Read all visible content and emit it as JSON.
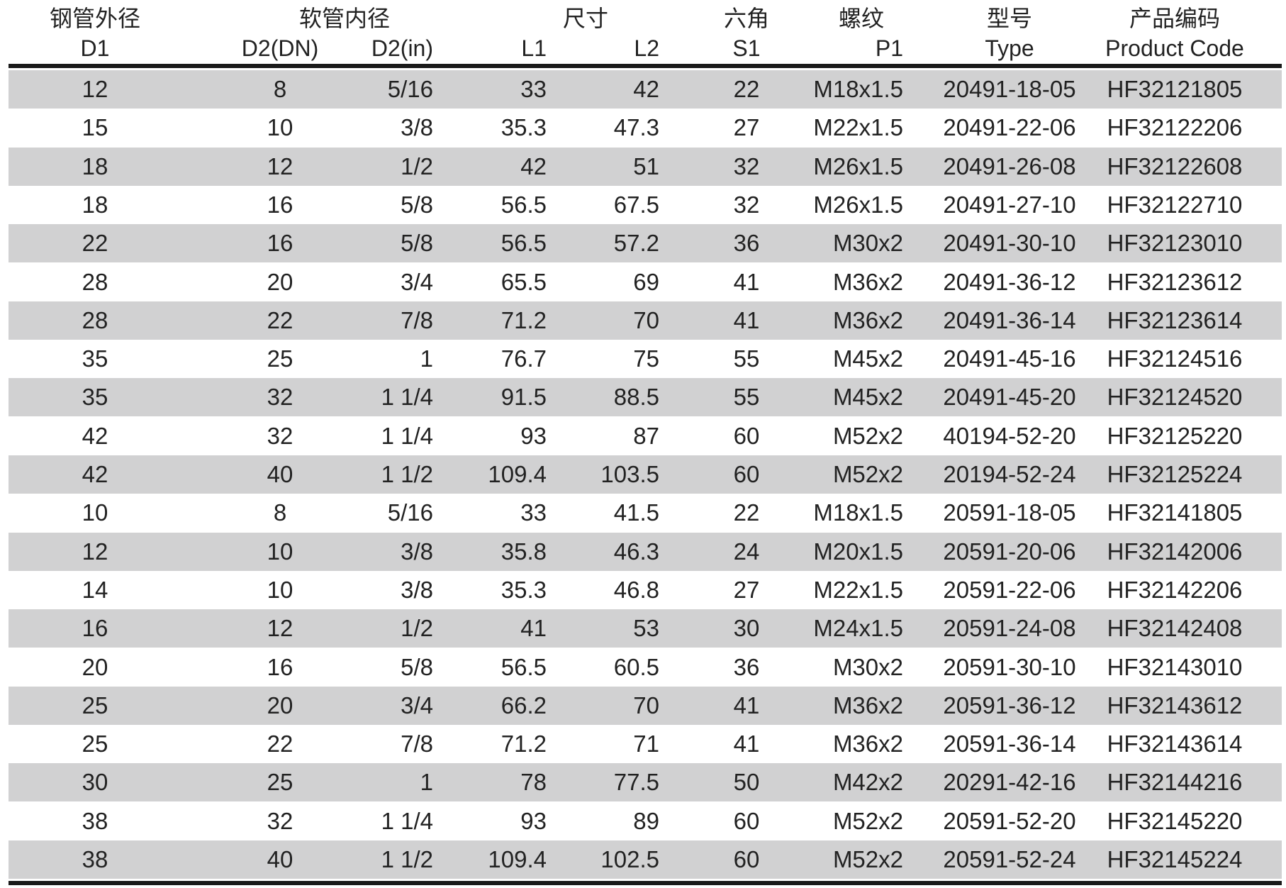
{
  "header": {
    "groups": [
      "钢管外径",
      "软管内径",
      "尺寸",
      "六角",
      "螺纹",
      "型号",
      "产品编码"
    ],
    "columns": [
      "D1",
      "D2(DN)",
      "D2(in)",
      "L1",
      "L2",
      "S1",
      "P1",
      "Type",
      "Product Code"
    ]
  },
  "table": {
    "rows": [
      [
        "12",
        "8",
        "5/16",
        "33",
        "42",
        "22",
        "M18x1.5",
        "20491-18-05",
        "HF32121805"
      ],
      [
        "15",
        "10",
        "3/8",
        "35.3",
        "47.3",
        "27",
        "M22x1.5",
        "20491-22-06",
        "HF32122206"
      ],
      [
        "18",
        "12",
        "1/2",
        "42",
        "51",
        "32",
        "M26x1.5",
        "20491-26-08",
        "HF32122608"
      ],
      [
        "18",
        "16",
        "5/8",
        "56.5",
        "67.5",
        "32",
        "M26x1.5",
        "20491-27-10",
        "HF32122710"
      ],
      [
        "22",
        "16",
        "5/8",
        "56.5",
        "57.2",
        "36",
        "M30x2",
        "20491-30-10",
        "HF32123010"
      ],
      [
        "28",
        "20",
        "3/4",
        "65.5",
        "69",
        "41",
        "M36x2",
        "20491-36-12",
        "HF32123612"
      ],
      [
        "28",
        "22",
        "7/8",
        "71.2",
        "70",
        "41",
        "M36x2",
        "20491-36-14",
        "HF32123614"
      ],
      [
        "35",
        "25",
        "1",
        "76.7",
        "75",
        "55",
        "M45x2",
        "20491-45-16",
        "HF32124516"
      ],
      [
        "35",
        "32",
        "1 1/4",
        "91.5",
        "88.5",
        "55",
        "M45x2",
        "20491-45-20",
        "HF32124520"
      ],
      [
        "42",
        "32",
        "1 1/4",
        "93",
        "87",
        "60",
        "M52x2",
        "40194-52-20",
        "HF32125220"
      ],
      [
        "42",
        "40",
        "1 1/2",
        "109.4",
        "103.5",
        "60",
        "M52x2",
        "20194-52-24",
        "HF32125224"
      ],
      [
        "10",
        "8",
        "5/16",
        "33",
        "41.5",
        "22",
        "M18x1.5",
        "20591-18-05",
        "HF32141805"
      ],
      [
        "12",
        "10",
        "3/8",
        "35.8",
        "46.3",
        "24",
        "M20x1.5",
        "20591-20-06",
        "HF32142006"
      ],
      [
        "14",
        "10",
        "3/8",
        "35.3",
        "46.8",
        "27",
        "M22x1.5",
        "20591-22-06",
        "HF32142206"
      ],
      [
        "16",
        "12",
        "1/2",
        "41",
        "53",
        "30",
        "M24x1.5",
        "20591-24-08",
        "HF32142408"
      ],
      [
        "20",
        "16",
        "5/8",
        "56.5",
        "60.5",
        "36",
        "M30x2",
        "20591-30-10",
        "HF32143010"
      ],
      [
        "25",
        "20",
        "3/4",
        "66.2",
        "70",
        "41",
        "M36x2",
        "20591-36-12",
        "HF32143612"
      ],
      [
        "25",
        "22",
        "7/8",
        "71.2",
        "71",
        "41",
        "M36x2",
        "20591-36-14",
        "HF32143614"
      ],
      [
        "30",
        "25",
        "1",
        "78",
        "77.5",
        "50",
        "M42x2",
        "20291-42-16",
        "HF32144216"
      ],
      [
        "38",
        "32",
        "1 1/4",
        "93",
        "89",
        "60",
        "M52x2",
        "20591-52-20",
        "HF32145220"
      ],
      [
        "38",
        "40",
        "1 1/2",
        "109.4",
        "102.5",
        "60",
        "M52x2",
        "20591-52-24",
        "HF32145224"
      ]
    ]
  }
}
